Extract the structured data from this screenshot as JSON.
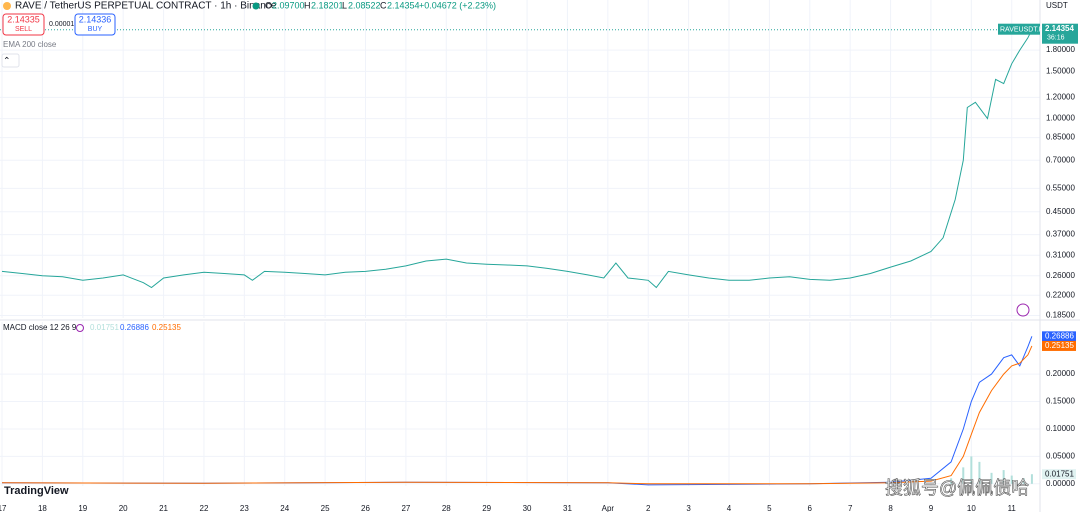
{
  "header": {
    "symbol": "RAVE / TetherUS PERPETUAL CONTRACT · 1h · Binance",
    "o_label": "O",
    "o": "2.09700",
    "h_label": "H",
    "h": "2.18201",
    "l_label": "L",
    "l": "2.08522",
    "c_label": "C",
    "change": "+0.04672 (+2.23%)"
  },
  "trade": {
    "sell_price": "2.14335",
    "sell": "SELL",
    "spread": "0.00001",
    "buy_price": "2.14336",
    "buy": "BUY"
  },
  "indicators": {
    "ema": "EMA 200 close"
  },
  "currency": "USDT",
  "countdown": "36:16",
  "brand": "TradingView",
  "watermark": "搜狐号@佩佩债哈",
  "chart_data": [
    {
      "type": "line",
      "log_scale": true,
      "grid": true,
      "x": [
        0,
        0.5,
        1,
        1.5,
        2,
        2.5,
        3,
        3.5,
        3.7,
        4,
        4.5,
        5,
        5.5,
        6,
        6.2,
        6.5,
        7,
        7.5,
        8,
        8.5,
        9,
        9.5,
        10,
        10.5,
        11,
        11.5,
        12,
        12.5,
        13,
        13.5,
        14,
        14.5,
        14.9,
        15.2,
        15.5,
        16,
        16.2,
        16.5,
        17,
        17.5,
        18,
        18.5,
        19,
        19.5,
        20,
        20.5,
        21,
        21.5,
        22,
        22.5,
        23,
        23.3,
        23.6,
        23.8,
        23.9,
        24.1,
        24.4,
        24.6,
        24.8,
        25,
        25.2,
        25.4,
        25.5
      ],
      "series": [
        {
          "name": "RAVEUSDT.P",
          "color": "#26a69a",
          "values": [
            0.27,
            0.265,
            0.26,
            0.258,
            0.25,
            0.255,
            0.262,
            0.245,
            0.235,
            0.255,
            0.262,
            0.268,
            0.265,
            0.262,
            0.25,
            0.27,
            0.268,
            0.265,
            0.262,
            0.268,
            0.27,
            0.275,
            0.283,
            0.295,
            0.3,
            0.29,
            0.287,
            0.285,
            0.283,
            0.277,
            0.27,
            0.262,
            0.255,
            0.29,
            0.255,
            0.25,
            0.235,
            0.27,
            0.262,
            0.255,
            0.25,
            0.25,
            0.255,
            0.258,
            0.252,
            0.25,
            0.255,
            0.265,
            0.28,
            0.295,
            0.32,
            0.36,
            0.5,
            0.7,
            1.1,
            1.15,
            1.0,
            1.4,
            1.35,
            1.6,
            1.8,
            2.0,
            2.14354
          ]
        }
      ],
      "xlim": [
        -0.05,
        25.7
      ],
      "ylim": [
        0.181,
        2.765
      ],
      "yticks": [
        {
          "value": 0.185,
          "label": "0.18500"
        },
        {
          "value": 0.22,
          "label": "0.22000"
        },
        {
          "value": 0.26,
          "label": "0.26000"
        },
        {
          "value": 0.31,
          "label": "0.31000"
        },
        {
          "value": 0.37,
          "label": "0.37000"
        },
        {
          "value": 0.45,
          "label": "0.45000"
        },
        {
          "value": 0.55,
          "label": "0.55000"
        },
        {
          "value": 0.7,
          "label": "0.70000"
        },
        {
          "value": 0.85,
          "label": "0.85000"
        },
        {
          "value": 1,
          "label": "1.00000"
        },
        {
          "value": 1.2,
          "label": "1.20000"
        },
        {
          "value": 1.5,
          "label": "1.50000"
        },
        {
          "value": 1.8,
          "label": "1.80000"
        }
      ]
    },
    {
      "type": "macd",
      "title": "MACD close 12 26 9",
      "grid": true,
      "series": [
        {
          "kind": "bar",
          "color": "#b2dfdb",
          "x": [
            23.5,
            23.8,
            24,
            24.2,
            24.5,
            24.8,
            25,
            25.3,
            25.5
          ],
          "values": [
            0.01,
            0.03,
            0.05,
            0.04,
            0.02,
            0.025,
            0.015,
            0.01,
            0.01751
          ]
        },
        {
          "kind": "line",
          "color": "#2962ff",
          "x": [
            0,
            5,
            10,
            15,
            16,
            20,
            22,
            23,
            23.5,
            23.8,
            24,
            24.2,
            24.5,
            24.8,
            25,
            25.2,
            25.4,
            25.5
          ],
          "values": [
            0.002,
            0.001,
            0.003,
            0.002,
            -0.002,
            0,
            0.003,
            0.01,
            0.04,
            0.1,
            0.15,
            0.185,
            0.2,
            0.23,
            0.235,
            0.215,
            0.25,
            0.26886
          ]
        },
        {
          "kind": "line",
          "color": "#ff6d00",
          "x": [
            0,
            5,
            10,
            15,
            16,
            20,
            22,
            23,
            23.5,
            23.8,
            24,
            24.2,
            24.5,
            24.8,
            25,
            25.2,
            25.4,
            25.5
          ],
          "values": [
            0.002,
            0.001,
            0.003,
            0.002,
            0,
            0,
            0.002,
            0.005,
            0.015,
            0.05,
            0.09,
            0.13,
            0.17,
            0.2,
            0.215,
            0.22,
            0.235,
            0.25135
          ]
        }
      ],
      "xlim": [
        -0.05,
        25.7
      ],
      "ylim": [
        -0.004,
        0.295
      ],
      "yticks": [
        {
          "value": 0,
          "label": "0.00000"
        },
        {
          "value": 0.05,
          "label": "0.05000"
        },
        {
          "value": 0.1,
          "label": "0.10000"
        },
        {
          "value": 0.15,
          "label": "0.15000"
        },
        {
          "value": 0.2,
          "label": "0.20000"
        }
      ],
      "xticks": [
        {
          "value": 0,
          "label": "17"
        },
        {
          "value": 1,
          "label": "18"
        },
        {
          "value": 2,
          "label": "19"
        },
        {
          "value": 3,
          "label": "20"
        },
        {
          "value": 4,
          "label": "21"
        },
        {
          "value": 5,
          "label": "22"
        },
        {
          "value": 6,
          "label": "23"
        },
        {
          "value": 7,
          "label": "24"
        },
        {
          "value": 8,
          "label": "25"
        },
        {
          "value": 9,
          "label": "26"
        },
        {
          "value": 10,
          "label": "27"
        },
        {
          "value": 11,
          "label": "28"
        },
        {
          "value": 12,
          "label": "29"
        },
        {
          "value": 13,
          "label": "30"
        },
        {
          "value": 14,
          "label": "31"
        },
        {
          "value": 15,
          "label": "Apr"
        },
        {
          "value": 16,
          "label": "2"
        },
        {
          "value": 17,
          "label": "3"
        },
        {
          "value": 18,
          "label": "4"
        },
        {
          "value": 19,
          "label": "5"
        },
        {
          "value": 20,
          "label": "6"
        },
        {
          "value": 21,
          "label": "7"
        },
        {
          "value": 22,
          "label": "8"
        },
        {
          "value": 23,
          "label": "9"
        },
        {
          "value": 24,
          "label": "10"
        },
        {
          "value": 25,
          "label": "11"
        }
      ]
    }
  ]
}
